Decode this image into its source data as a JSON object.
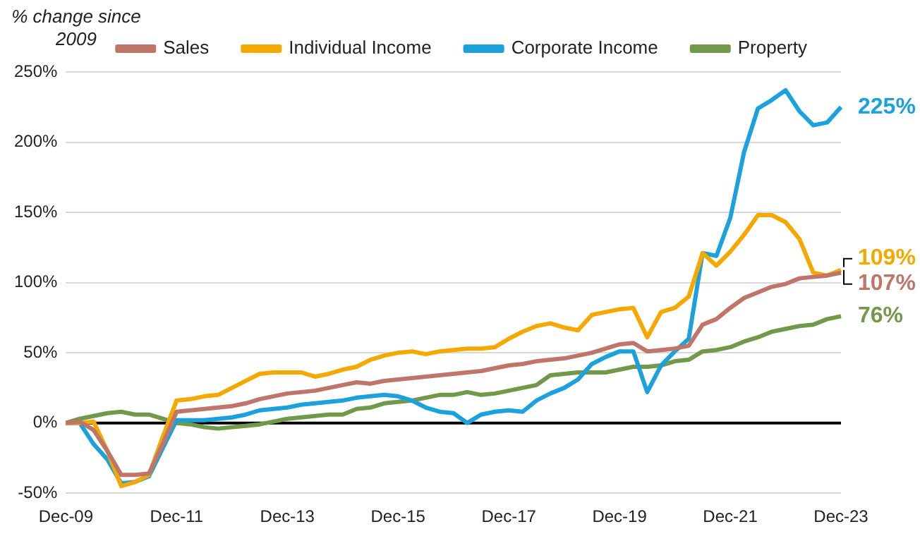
{
  "chart_data": {
    "type": "line",
    "ylabel": "% change since 2009",
    "categories": [
      "Dec-09",
      null,
      null,
      null,
      null,
      null,
      null,
      null,
      "Dec-11",
      null,
      null,
      null,
      null,
      null,
      null,
      null,
      "Dec-13",
      null,
      null,
      null,
      null,
      null,
      null,
      null,
      "Dec-15",
      null,
      null,
      null,
      null,
      null,
      null,
      null,
      "Dec-17",
      null,
      null,
      null,
      null,
      null,
      null,
      null,
      "Dec-19",
      null,
      null,
      null,
      null,
      null,
      null,
      null,
      "Dec-21",
      null,
      null,
      null,
      null,
      null,
      null,
      null,
      "Dec-23"
    ],
    "series": [
      {
        "name": "Sales",
        "color": "#c0756a",
        "values": [
          0,
          1,
          -5,
          -20,
          -37,
          -37,
          -36,
          -15,
          8,
          9,
          10,
          11,
          12,
          14,
          17,
          19,
          21,
          22,
          23,
          25,
          27,
          29,
          28,
          30,
          31,
          32,
          33,
          34,
          35,
          36,
          37,
          39,
          41,
          42,
          44,
          45,
          46,
          48,
          50,
          53,
          56,
          57,
          51,
          52,
          53,
          55,
          70,
          74,
          82,
          89,
          93,
          97,
          99,
          103,
          104,
          105,
          107
        ]
      },
      {
        "name": "Individual Income",
        "color": "#f5a800",
        "values": [
          0,
          0,
          1,
          -20,
          -45,
          -42,
          -37,
          -10,
          16,
          17,
          19,
          20,
          25,
          30,
          35,
          36,
          36,
          36,
          33,
          35,
          38,
          40,
          45,
          48,
          50,
          51,
          49,
          51,
          52,
          53,
          53,
          54,
          60,
          65,
          69,
          71,
          68,
          66,
          77,
          79,
          81,
          82,
          61,
          79,
          82,
          90,
          121,
          112,
          122,
          134,
          148,
          148,
          143,
          131,
          107,
          105,
          109
        ]
      },
      {
        "name": "Corporate Income",
        "color": "#1ba1dc",
        "values": [
          0,
          0,
          -15,
          -26,
          -43,
          -42,
          -38,
          -18,
          2,
          2,
          2,
          3,
          4,
          6,
          9,
          10,
          11,
          13,
          14,
          15,
          16,
          18,
          19,
          20,
          19,
          16,
          11,
          8,
          7,
          0,
          6,
          8,
          9,
          8,
          16,
          21,
          25,
          31,
          42,
          47,
          51,
          51,
          22,
          41,
          51,
          60,
          121,
          119,
          146,
          193,
          224,
          230,
          237,
          222,
          212,
          214,
          225
        ]
      },
      {
        "name": "Property",
        "color": "#72994a",
        "values": [
          0,
          3,
          5,
          7,
          8,
          6,
          6,
          3,
          0,
          -1,
          -3,
          -4,
          -3,
          -2,
          -1,
          1,
          3,
          4,
          5,
          6,
          6,
          10,
          11,
          14,
          15,
          16,
          18,
          20,
          20,
          22,
          20,
          21,
          23,
          25,
          27,
          34,
          35,
          36,
          36,
          36,
          38,
          40,
          40,
          41,
          44,
          45,
          51,
          52,
          54,
          58,
          61,
          65,
          67,
          69,
          70,
          74,
          76
        ]
      }
    ],
    "ylim": [
      -50,
      250
    ],
    "yticks": [
      {
        "value": -50,
        "label": "-50%"
      },
      {
        "value": 0,
        "label": "0%"
      },
      {
        "value": 50,
        "label": "50%"
      },
      {
        "value": 100,
        "label": "100%"
      },
      {
        "value": 150,
        "label": "150%"
      },
      {
        "value": 200,
        "label": "200%"
      },
      {
        "value": 250,
        "label": "250%"
      }
    ],
    "ref_lines": [
      {
        "axis": "y",
        "value": 0,
        "color": "#000000"
      }
    ],
    "annotations": [
      {
        "text": "225%",
        "x": "Dec-23",
        "y": 225
      },
      {
        "text": "109%",
        "x": "Dec-23",
        "y": 109
      },
      {
        "text": "107%",
        "x": "Dec-23",
        "y": 107
      },
      {
        "text": "76%",
        "x": "Dec-23",
        "y": 76
      }
    ],
    "grid": "y",
    "legend": "top",
    "marker": "none",
    "line_style": "solid"
  }
}
